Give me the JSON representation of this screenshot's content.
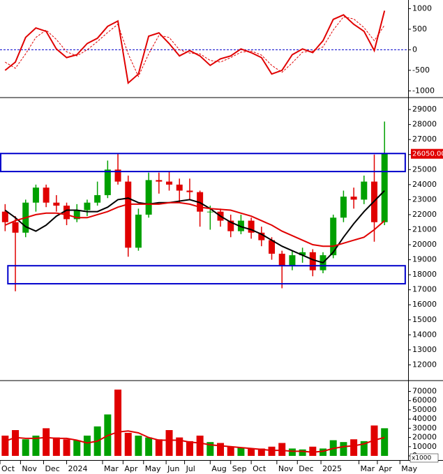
{
  "chart_data": [
    {
      "type": "line",
      "x": [
        1,
        3,
        5,
        7,
        9,
        11,
        13,
        15,
        17,
        19,
        21,
        23,
        25,
        27,
        29,
        31,
        33,
        35,
        37,
        39,
        41,
        43,
        45,
        47,
        49,
        51,
        53,
        55,
        57,
        59,
        61,
        63,
        65,
        67,
        69,
        71,
        73,
        75
      ],
      "xlim": [
        0,
        79.6
      ],
      "ylim": [
        -1130,
        1160
      ],
      "yticks": [
        1000,
        500,
        0,
        -500,
        -1000
      ],
      "zero_line": {
        "value": 0,
        "color": "#0000cc"
      },
      "series": [
        {
          "color": "#e00000",
          "dashed": false,
          "values": [
            -500,
            -300,
            300,
            530,
            450,
            20,
            -190,
            -120,
            150,
            280,
            570,
            700,
            -810,
            -590,
            330,
            410,
            150,
            -150,
            -20,
            -150,
            -380,
            -220,
            -150,
            20,
            -70,
            -190,
            -590,
            -500,
            -120,
            20,
            -70,
            220,
            740,
            850,
            620,
            450,
            -20,
            950
          ]
        },
        {
          "color": "#e00000",
          "dashed": true,
          "values": [
            -300,
            -450,
            -100,
            300,
            480,
            250,
            -50,
            -150,
            0,
            200,
            420,
            620,
            -100,
            -650,
            -100,
            350,
            300,
            0,
            -80,
            -100,
            -260,
            -300,
            -190,
            -60,
            -30,
            -130,
            -380,
            -550,
            -320,
            -60,
            -30,
            70,
            480,
            800,
            750,
            540,
            220,
            600
          ]
        }
      ]
    },
    {
      "type": "candlestick",
      "x": [
        1,
        3,
        5,
        7,
        9,
        11,
        13,
        15,
        17,
        19,
        21,
        23,
        25,
        27,
        29,
        31,
        33,
        35,
        37,
        39,
        41,
        43,
        45,
        47,
        49,
        51,
        53,
        55,
        57,
        59,
        61,
        63,
        65,
        67,
        69,
        71,
        73,
        75
      ],
      "open": [
        22200,
        21500,
        20800,
        22800,
        23800,
        22800,
        22600,
        21700,
        22300,
        22800,
        23300,
        25000,
        24200,
        19800,
        22000,
        24300,
        24200,
        24000,
        23600,
        23500,
        22200,
        22200,
        21600,
        20900,
        21600,
        20800,
        20300,
        19400,
        18600,
        19300,
        19500,
        18300,
        19300,
        21800,
        23200,
        23000,
        24200,
        21500
      ],
      "high": [
        22700,
        21900,
        23000,
        24000,
        24000,
        23300,
        22800,
        22700,
        23000,
        24200,
        25600,
        26100,
        24600,
        22400,
        24800,
        24800,
        24900,
        24400,
        24400,
        23600,
        22600,
        22400,
        22000,
        22000,
        21800,
        21200,
        20500,
        19600,
        19600,
        19800,
        19700,
        19500,
        22000,
        23600,
        23800,
        24600,
        26000,
        28200
      ],
      "low": [
        20900,
        16900,
        20500,
        22200,
        22500,
        22200,
        21300,
        21500,
        21900,
        22600,
        23100,
        24000,
        19200,
        19600,
        21800,
        23400,
        23600,
        22800,
        23000,
        21200,
        21000,
        21200,
        20500,
        20700,
        20400,
        19900,
        19000,
        17100,
        18300,
        18800,
        17900,
        18100,
        19100,
        21500,
        22400,
        22700,
        20200,
        21300
      ],
      "close": [
        21500,
        20800,
        22800,
        23800,
        22800,
        22600,
        21700,
        22300,
        22800,
        23300,
        25000,
        24200,
        19800,
        22000,
        24300,
        24200,
        24000,
        23600,
        23500,
        22200,
        22200,
        21600,
        20900,
        21600,
        20800,
        20300,
        19400,
        18600,
        19300,
        19500,
        18300,
        19300,
        21800,
        23200,
        23000,
        24200,
        21500,
        26050
      ],
      "up_color": "#00a000",
      "down_color": "#e00000",
      "xlim": [
        0,
        79.6
      ],
      "ylim": [
        11000,
        29700
      ],
      "yticks": [
        29000,
        28000,
        27000,
        26000,
        25000,
        24000,
        23000,
        22000,
        21000,
        20000,
        19000,
        18000,
        17000,
        16000,
        15000,
        14000,
        13000,
        12000
      ],
      "series": [
        {
          "color": "#000000",
          "values": [
            22300,
            21800,
            21200,
            20900,
            21300,
            21900,
            22300,
            22300,
            22200,
            22200,
            22500,
            23000,
            23100,
            22800,
            22700,
            22800,
            22800,
            22900,
            23000,
            22800,
            22400,
            21900,
            21500,
            21200,
            21000,
            20700,
            20300,
            19900,
            19600,
            19300,
            19000,
            18800,
            19500,
            20500,
            21400,
            22200,
            22900,
            23600
          ]
        },
        {
          "color": "#e00000",
          "values": [
            21300,
            21600,
            21800,
            22000,
            22100,
            22100,
            22000,
            21800,
            21800,
            22000,
            22200,
            22500,
            22700,
            22700,
            22700,
            22700,
            22800,
            22800,
            22700,
            22500,
            22400,
            22350,
            22300,
            22100,
            21900,
            21600,
            21300,
            20900,
            20600,
            20300,
            20000,
            19900,
            19900,
            20100,
            20300,
            20500,
            21000,
            21600
          ]
        }
      ],
      "zones": [
        {
          "x": [
            0,
            78.9
          ],
          "y": [
            24870,
            26070
          ],
          "color": "#0000cc"
        },
        {
          "x": [
            1.4,
            78.9
          ],
          "y": [
            17400,
            18600
          ],
          "color": "#0000cc"
        }
      ],
      "last_label": {
        "value": 26050,
        "label": "26050.00",
        "color": "#e00000"
      }
    },
    {
      "type": "bar",
      "x": [
        1,
        3,
        5,
        7,
        9,
        11,
        13,
        15,
        17,
        19,
        21,
        23,
        25,
        27,
        29,
        31,
        33,
        35,
        37,
        39,
        41,
        43,
        45,
        47,
        49,
        51,
        53,
        55,
        57,
        59,
        61,
        63,
        65,
        67,
        69,
        71,
        73,
        75
      ],
      "values": [
        22000,
        28000,
        18000,
        22000,
        30000,
        20000,
        18000,
        17000,
        22000,
        32000,
        45000,
        72000,
        25000,
        22000,
        20000,
        18000,
        28000,
        20000,
        16000,
        22000,
        15000,
        14000,
        10000,
        9000,
        8000,
        8000,
        10000,
        14000,
        8000,
        7000,
        10000,
        8000,
        17000,
        15000,
        18000,
        16000,
        33000,
        30000
      ],
      "colors": [
        "#e00000",
        "#e00000",
        "#00a000",
        "#00a000",
        "#e00000",
        "#e00000",
        "#e00000",
        "#00a000",
        "#00a000",
        "#00a000",
        "#00a000",
        "#e00000",
        "#e00000",
        "#00a000",
        "#00a000",
        "#e00000",
        "#e00000",
        "#e00000",
        "#e00000",
        "#e00000",
        "#00a000",
        "#e00000",
        "#e00000",
        "#00a000",
        "#e00000",
        "#e00000",
        "#e00000",
        "#e00000",
        "#00a000",
        "#00a000",
        "#e00000",
        "#00a000",
        "#00a000",
        "#00a000",
        "#e00000",
        "#00a000",
        "#e00000",
        "#00a000"
      ],
      "xlim": [
        0,
        79.6
      ],
      "ylim": [
        0,
        81000
      ],
      "yticks": [
        70000,
        60000,
        50000,
        40000,
        30000,
        20000,
        10000,
        0
      ],
      "unit_label": "x1000",
      "series": [
        {
          "color": "#e00000",
          "values": [
            16000,
            20000,
            19000,
            19000,
            20000,
            19000,
            19000,
            17000,
            14000,
            16000,
            22000,
            26000,
            27000,
            25000,
            20000,
            17000,
            17000,
            17000,
            15000,
            14000,
            12000,
            11000,
            10000,
            9000,
            8000,
            7000,
            6000,
            6000,
            5000,
            5000,
            4000,
            5000,
            8000,
            10000,
            11000,
            13000,
            17000,
            20000
          ]
        }
      ],
      "xticks": [
        {
          "value": 0,
          "label": "Oct"
        },
        {
          "value": 4,
          "label": "Nov"
        },
        {
          "value": 8.5,
          "label": "Dec"
        },
        {
          "value": 13,
          "label": "2024"
        },
        {
          "value": 20,
          "label": "Mar"
        },
        {
          "value": 24,
          "label": "Apr"
        },
        {
          "value": 28,
          "label": "May"
        },
        {
          "value": 32.4,
          "label": "Jun"
        },
        {
          "value": 36,
          "label": "Jul"
        },
        {
          "value": 41,
          "label": "Aug"
        },
        {
          "value": 45,
          "label": "Sep"
        },
        {
          "value": 49,
          "label": "Oct"
        },
        {
          "value": 54,
          "label": "Nov"
        },
        {
          "value": 58,
          "label": "Dec"
        },
        {
          "value": 62.6,
          "label": "2025"
        },
        {
          "value": 70,
          "label": "Mar"
        },
        {
          "value": 73.6,
          "label": "Apr"
        },
        {
          "value": 78,
          "label": "May"
        }
      ]
    }
  ]
}
